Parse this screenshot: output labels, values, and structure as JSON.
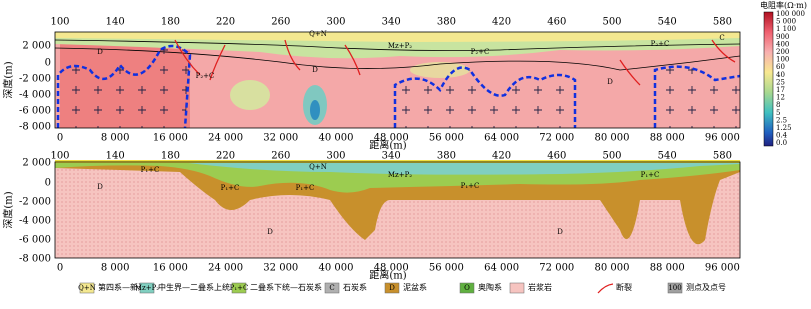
{
  "top_ticks": [
    "100",
    "140",
    "180",
    "220",
    "260",
    "300",
    "340",
    "380",
    "420",
    "460",
    "500",
    "540",
    "580"
  ],
  "x_ticks": [
    "0",
    "8 000",
    "16 000",
    "24 000",
    "32 000",
    "40 000",
    "48 000",
    "56 000",
    "64 000",
    "72 000",
    "80 000",
    "88 000",
    "96 000"
  ],
  "y_ticks": [
    "2 000",
    "0",
    "-2 000",
    "-4 000",
    "-6 000",
    "-8 000"
  ],
  "y_label": "深度(m)",
  "x_label": "距离(m)",
  "panel1": {
    "labels": [
      "D",
      "P₂+C",
      "Q+N",
      "Mz+P₂",
      "P₂+C",
      "D",
      "P₂+C",
      "C",
      "D"
    ]
  },
  "panel2": {
    "labels": [
      "P₁+C",
      "Q+N",
      "Mz+P₂",
      "P₁+C",
      "P₁+C",
      "P₁+C",
      "P₁+C",
      "D",
      "D",
      "D"
    ]
  },
  "colorbar": {
    "title": "电阻率(Ω·m)",
    "labels": [
      "100 000",
      "5 000",
      "1 100",
      "900",
      "400",
      "200",
      "100",
      "60",
      "40",
      "25",
      "17",
      "12",
      "8",
      "5",
      "2.5",
      "1.25",
      "0.4",
      "0.0"
    ]
  },
  "legend": [
    {
      "code": "Q+N",
      "text": "第四系—新近系"
    },
    {
      "code": "Mz+P₂",
      "text": "中生界—二叠系上统"
    },
    {
      "code": "P₁+C",
      "text": "二叠系下统—石炭系"
    },
    {
      "code": "C",
      "text": "石炭系"
    },
    {
      "code": "D",
      "text": "泥盆系"
    },
    {
      "code": "O",
      "text": "奥陶系"
    },
    {
      "code": "",
      "text": "岩浆岩"
    },
    {
      "code": "",
      "text": "断裂"
    },
    {
      "code": "100",
      "text": "测点及点号"
    }
  ]
}
